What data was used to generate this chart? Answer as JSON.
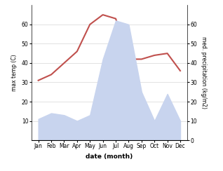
{
  "months": [
    "Jan",
    "Feb",
    "Mar",
    "Apr",
    "May",
    "Jun",
    "Jul",
    "Aug",
    "Sep",
    "Oct",
    "Nov",
    "Dec"
  ],
  "max_temp": [
    31,
    34,
    40,
    46,
    60,
    65,
    63,
    42,
    42,
    44,
    45,
    36
  ],
  "precipitation": [
    11,
    14,
    13,
    10,
    13,
    42,
    62,
    60,
    25,
    10,
    24,
    10
  ],
  "temp_color": "#c0504d",
  "precip_fill_color": "#c8d4ee",
  "temp_ylim": [
    0,
    70
  ],
  "precip_ylim": [
    0,
    70
  ],
  "temp_yticks": [
    10,
    20,
    30,
    40,
    50,
    60
  ],
  "precip_yticks": [
    0,
    10,
    20,
    30,
    40,
    50,
    60
  ],
  "xlabel": "date (month)",
  "ylabel_left": "max temp (C)",
  "ylabel_right": "med. precipitation (kg/m2)",
  "bg_color": "#ffffff"
}
